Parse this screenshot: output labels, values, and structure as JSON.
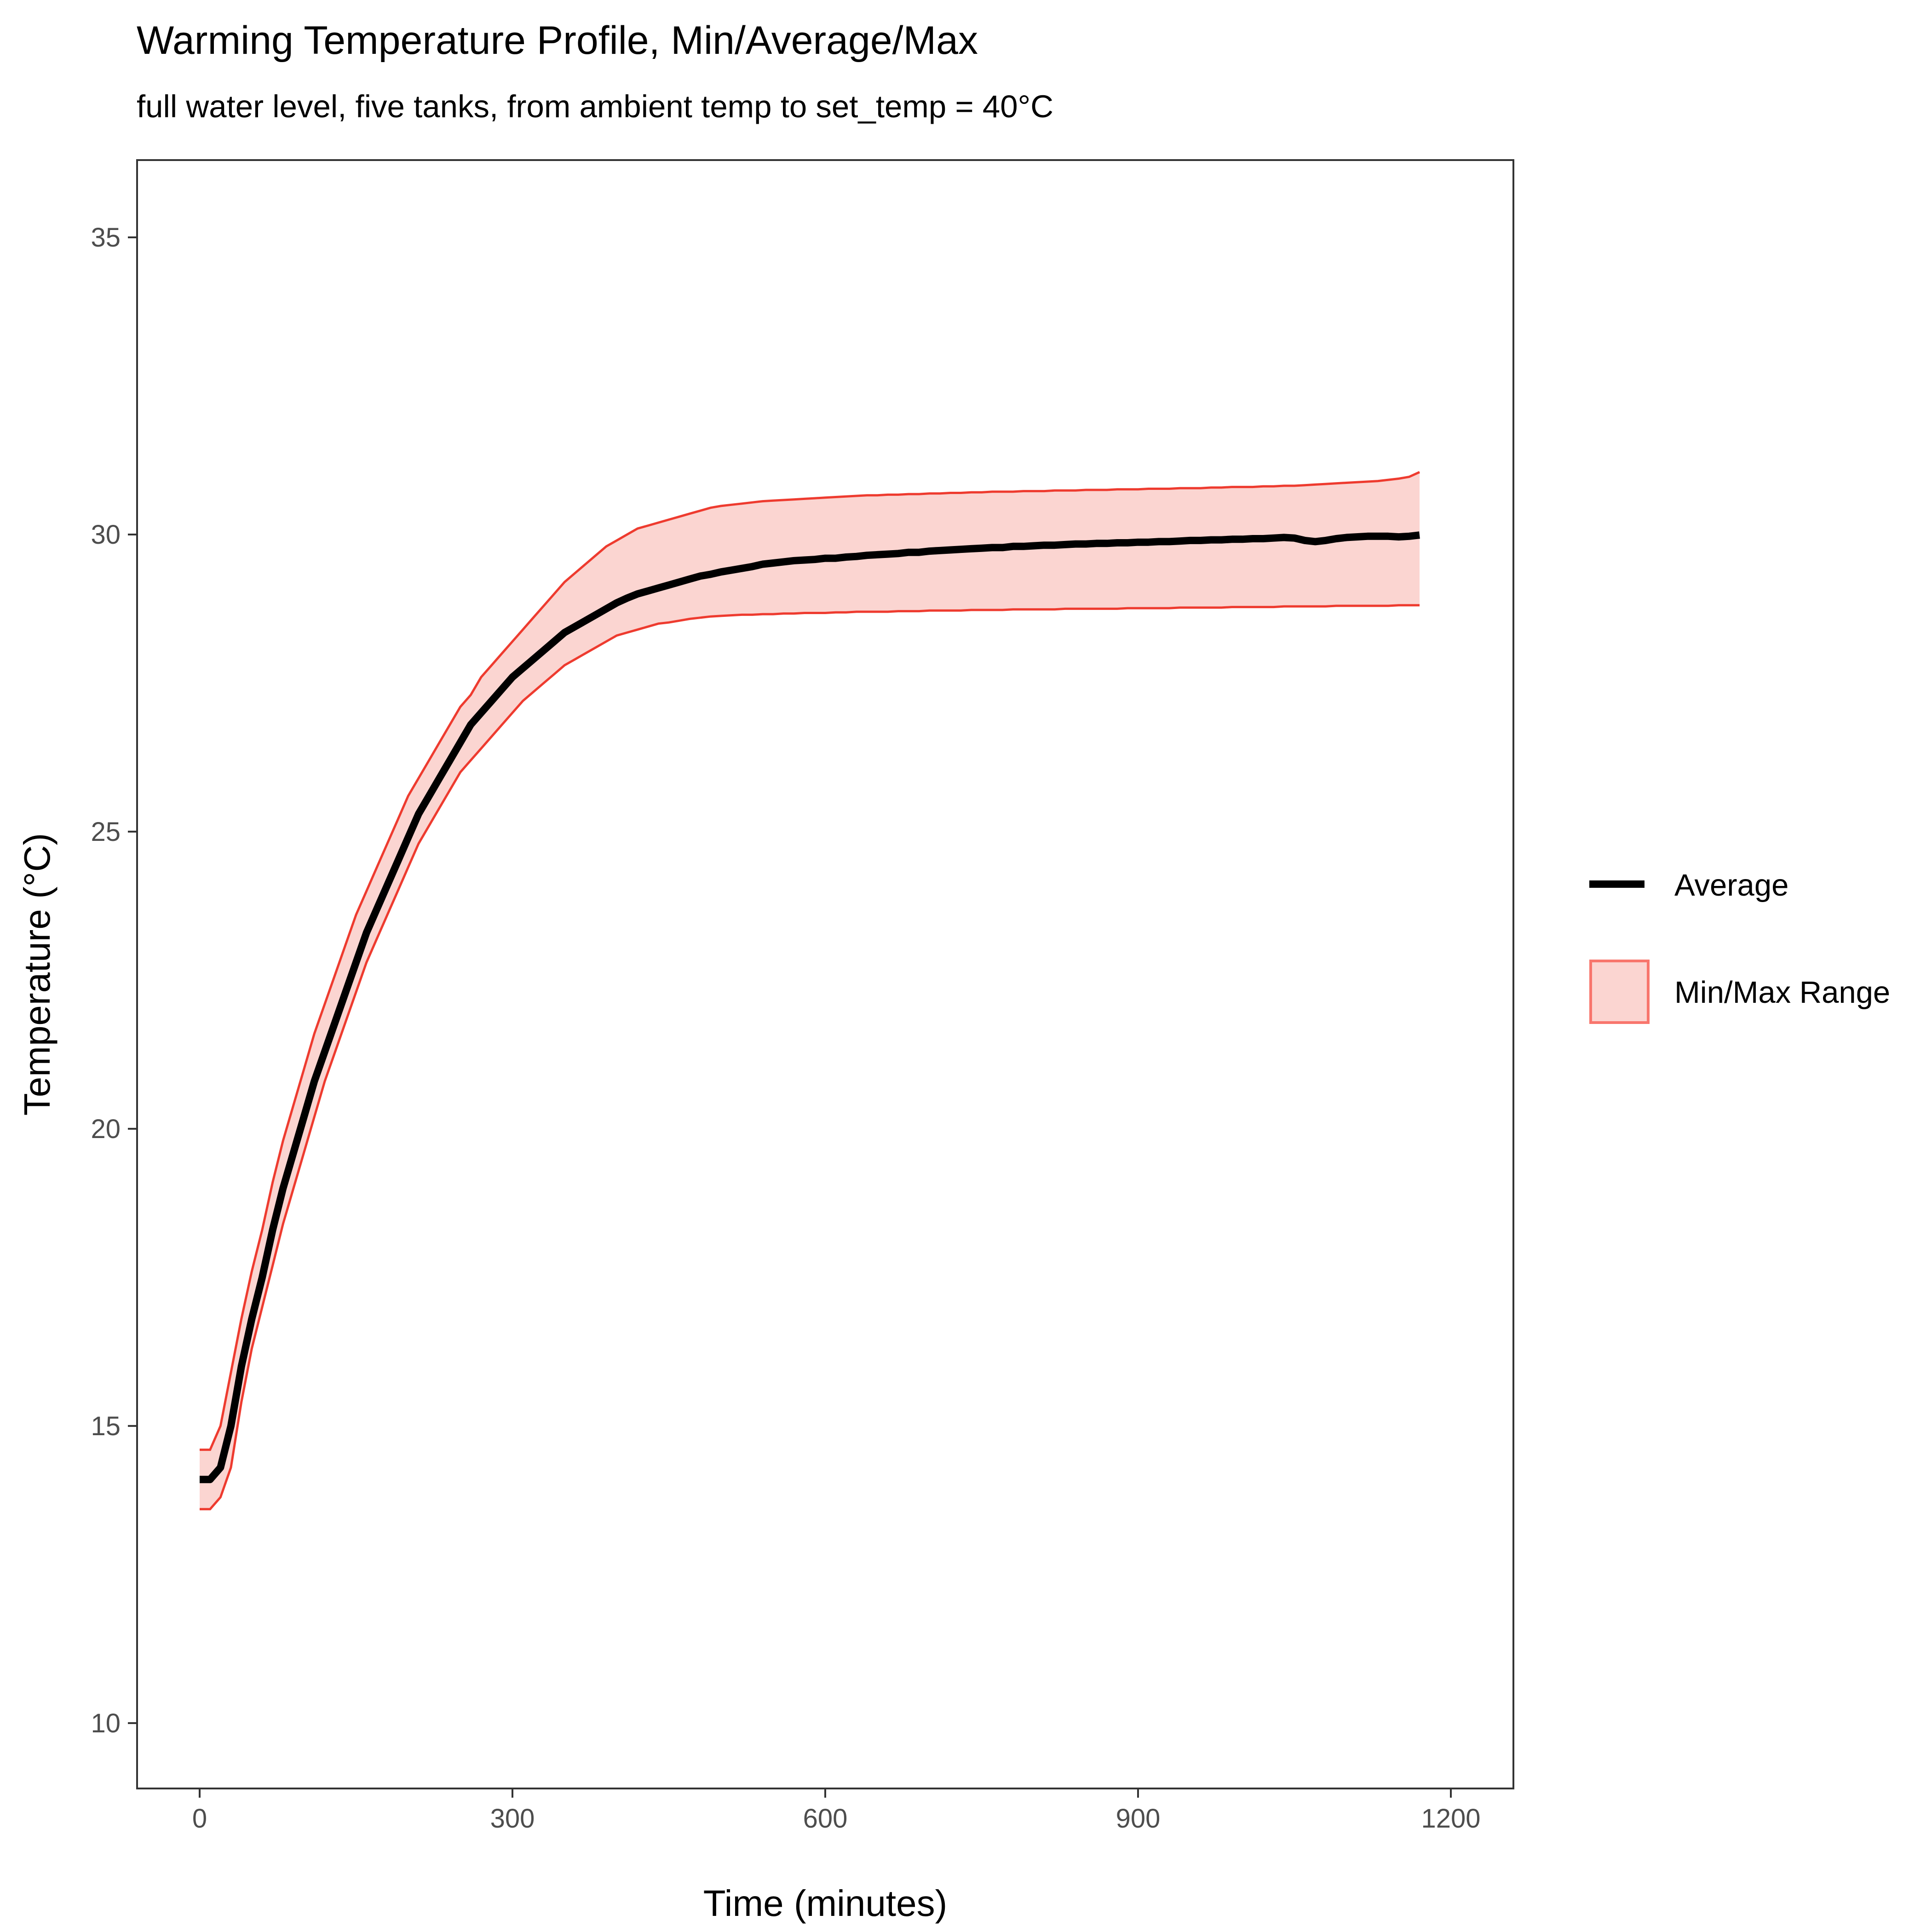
{
  "chart_data": {
    "type": "line",
    "title": "Warming Temperature Profile, Min/Average/Max",
    "subtitle": "full water level, five tanks, from ambient temp to set_temp = 40°C",
    "xlabel": "Time (minutes)",
    "ylabel": "Temperature (°C)",
    "xlim": [
      -60,
      1260
    ],
    "ylim": [
      8.9,
      36.3
    ],
    "x_ticks": [
      0,
      300,
      600,
      900,
      1200
    ],
    "x_tick_labels": [
      "0",
      "300",
      "600",
      "900",
      "1200"
    ],
    "y_ticks": [
      10,
      15,
      20,
      25,
      30,
      35
    ],
    "y_tick_labels": [
      "10",
      "15",
      "20",
      "25",
      "30",
      "35"
    ],
    "grid": false,
    "legend_position": "right",
    "legend": [
      {
        "name": "Average",
        "kind": "line",
        "color": "#000000"
      },
      {
        "name": "Min/Max Range",
        "kind": "fill",
        "color": "#F8766D",
        "fill": "#FBD5D1"
      }
    ],
    "colors": {
      "average": "#000000",
      "range_line": "#F8766D",
      "range_fill": "#FBD5D1",
      "panel_border": "#333333"
    },
    "x": [
      0,
      10,
      20,
      30,
      40,
      50,
      60,
      70,
      80,
      90,
      100,
      110,
      120,
      130,
      140,
      150,
      160,
      170,
      180,
      190,
      200,
      210,
      220,
      230,
      240,
      250,
      260,
      270,
      280,
      290,
      300,
      310,
      320,
      330,
      340,
      350,
      360,
      370,
      380,
      390,
      400,
      410,
      420,
      430,
      440,
      450,
      460,
      470,
      480,
      490,
      500,
      510,
      520,
      530,
      540,
      550,
      560,
      570,
      580,
      590,
      600,
      610,
      620,
      630,
      640,
      650,
      660,
      670,
      680,
      690,
      700,
      710,
      720,
      730,
      740,
      750,
      760,
      770,
      780,
      790,
      800,
      810,
      820,
      830,
      840,
      850,
      860,
      870,
      880,
      890,
      900,
      910,
      920,
      930,
      940,
      950,
      960,
      970,
      980,
      990,
      1000,
      1010,
      1020,
      1030,
      1040,
      1050,
      1060,
      1070,
      1080,
      1090,
      1100,
      1110,
      1120,
      1130,
      1140,
      1150,
      1160,
      1170
    ],
    "series": [
      {
        "name": "Average",
        "values": [
          14.1,
          14.1,
          14.3,
          15.0,
          16.0,
          16.8,
          17.5,
          18.3,
          19.0,
          19.6,
          20.2,
          20.8,
          21.3,
          21.8,
          22.3,
          22.8,
          23.3,
          23.7,
          24.1,
          24.5,
          24.9,
          25.3,
          25.6,
          25.9,
          26.2,
          26.5,
          26.8,
          27.0,
          27.2,
          27.4,
          27.6,
          27.75,
          27.9,
          28.05,
          28.2,
          28.35,
          28.45,
          28.55,
          28.65,
          28.75,
          28.85,
          28.93,
          29.0,
          29.05,
          29.1,
          29.15,
          29.2,
          29.25,
          29.3,
          29.33,
          29.37,
          29.4,
          29.43,
          29.46,
          29.5,
          29.52,
          29.54,
          29.56,
          29.57,
          29.58,
          29.6,
          29.6,
          29.62,
          29.63,
          29.65,
          29.66,
          29.67,
          29.68,
          29.7,
          29.7,
          29.72,
          29.73,
          29.74,
          29.75,
          29.76,
          29.77,
          29.78,
          29.78,
          29.8,
          29.8,
          29.81,
          29.82,
          29.82,
          29.83,
          29.84,
          29.84,
          29.85,
          29.85,
          29.86,
          29.86,
          29.87,
          29.87,
          29.88,
          29.88,
          29.89,
          29.9,
          29.9,
          29.91,
          29.91,
          29.92,
          29.92,
          29.93,
          29.93,
          29.94,
          29.95,
          29.94,
          29.9,
          29.88,
          29.9,
          29.93,
          29.95,
          29.96,
          29.97,
          29.97,
          29.97,
          29.96,
          29.97,
          29.99
        ]
      },
      {
        "name": "Min",
        "values": [
          13.6,
          13.6,
          13.8,
          14.3,
          15.4,
          16.3,
          17.0,
          17.7,
          18.4,
          19.0,
          19.6,
          20.2,
          20.8,
          21.3,
          21.8,
          22.3,
          22.8,
          23.2,
          23.6,
          24.0,
          24.4,
          24.8,
          25.1,
          25.4,
          25.7,
          26.0,
          26.2,
          26.4,
          26.6,
          26.8,
          27.0,
          27.2,
          27.35,
          27.5,
          27.65,
          27.8,
          27.9,
          28.0,
          28.1,
          28.2,
          28.3,
          28.35,
          28.4,
          28.45,
          28.5,
          28.52,
          28.55,
          28.58,
          28.6,
          28.62,
          28.63,
          28.64,
          28.65,
          28.65,
          28.66,
          28.66,
          28.67,
          28.67,
          28.68,
          28.68,
          28.68,
          28.69,
          28.69,
          28.7,
          28.7,
          28.7,
          28.7,
          28.71,
          28.71,
          28.71,
          28.72,
          28.72,
          28.72,
          28.72,
          28.73,
          28.73,
          28.73,
          28.73,
          28.74,
          28.74,
          28.74,
          28.74,
          28.74,
          28.75,
          28.75,
          28.75,
          28.75,
          28.75,
          28.75,
          28.76,
          28.76,
          28.76,
          28.76,
          28.76,
          28.77,
          28.77,
          28.77,
          28.77,
          28.77,
          28.78,
          28.78,
          28.78,
          28.78,
          28.78,
          28.79,
          28.79,
          28.79,
          28.79,
          28.79,
          28.8,
          28.8,
          28.8,
          28.8,
          28.8,
          28.8,
          28.81,
          28.81,
          28.81
        ]
      },
      {
        "name": "Max",
        "values": [
          14.6,
          14.6,
          15.0,
          15.9,
          16.8,
          17.6,
          18.3,
          19.1,
          19.8,
          20.4,
          21.0,
          21.6,
          22.1,
          22.6,
          23.1,
          23.6,
          24.0,
          24.4,
          24.8,
          25.2,
          25.6,
          25.9,
          26.2,
          26.5,
          26.8,
          27.1,
          27.3,
          27.6,
          27.8,
          28.0,
          28.2,
          28.4,
          28.6,
          28.8,
          29.0,
          29.2,
          29.35,
          29.5,
          29.65,
          29.8,
          29.9,
          30.0,
          30.1,
          30.15,
          30.2,
          30.25,
          30.3,
          30.35,
          30.4,
          30.45,
          30.48,
          30.5,
          30.52,
          30.54,
          30.56,
          30.57,
          30.58,
          30.59,
          30.6,
          30.61,
          30.62,
          30.63,
          30.64,
          30.65,
          30.66,
          30.66,
          30.67,
          30.67,
          30.68,
          30.68,
          30.69,
          30.69,
          30.7,
          30.7,
          30.71,
          30.71,
          30.72,
          30.72,
          30.72,
          30.73,
          30.73,
          30.73,
          30.74,
          30.74,
          30.74,
          30.75,
          30.75,
          30.75,
          30.76,
          30.76,
          30.76,
          30.77,
          30.77,
          30.77,
          30.78,
          30.78,
          30.78,
          30.79,
          30.79,
          30.8,
          30.8,
          30.8,
          30.81,
          30.81,
          30.82,
          30.82,
          30.83,
          30.84,
          30.85,
          30.86,
          30.87,
          30.88,
          30.89,
          30.9,
          30.92,
          30.94,
          30.97,
          31.05
        ]
      }
    ]
  }
}
